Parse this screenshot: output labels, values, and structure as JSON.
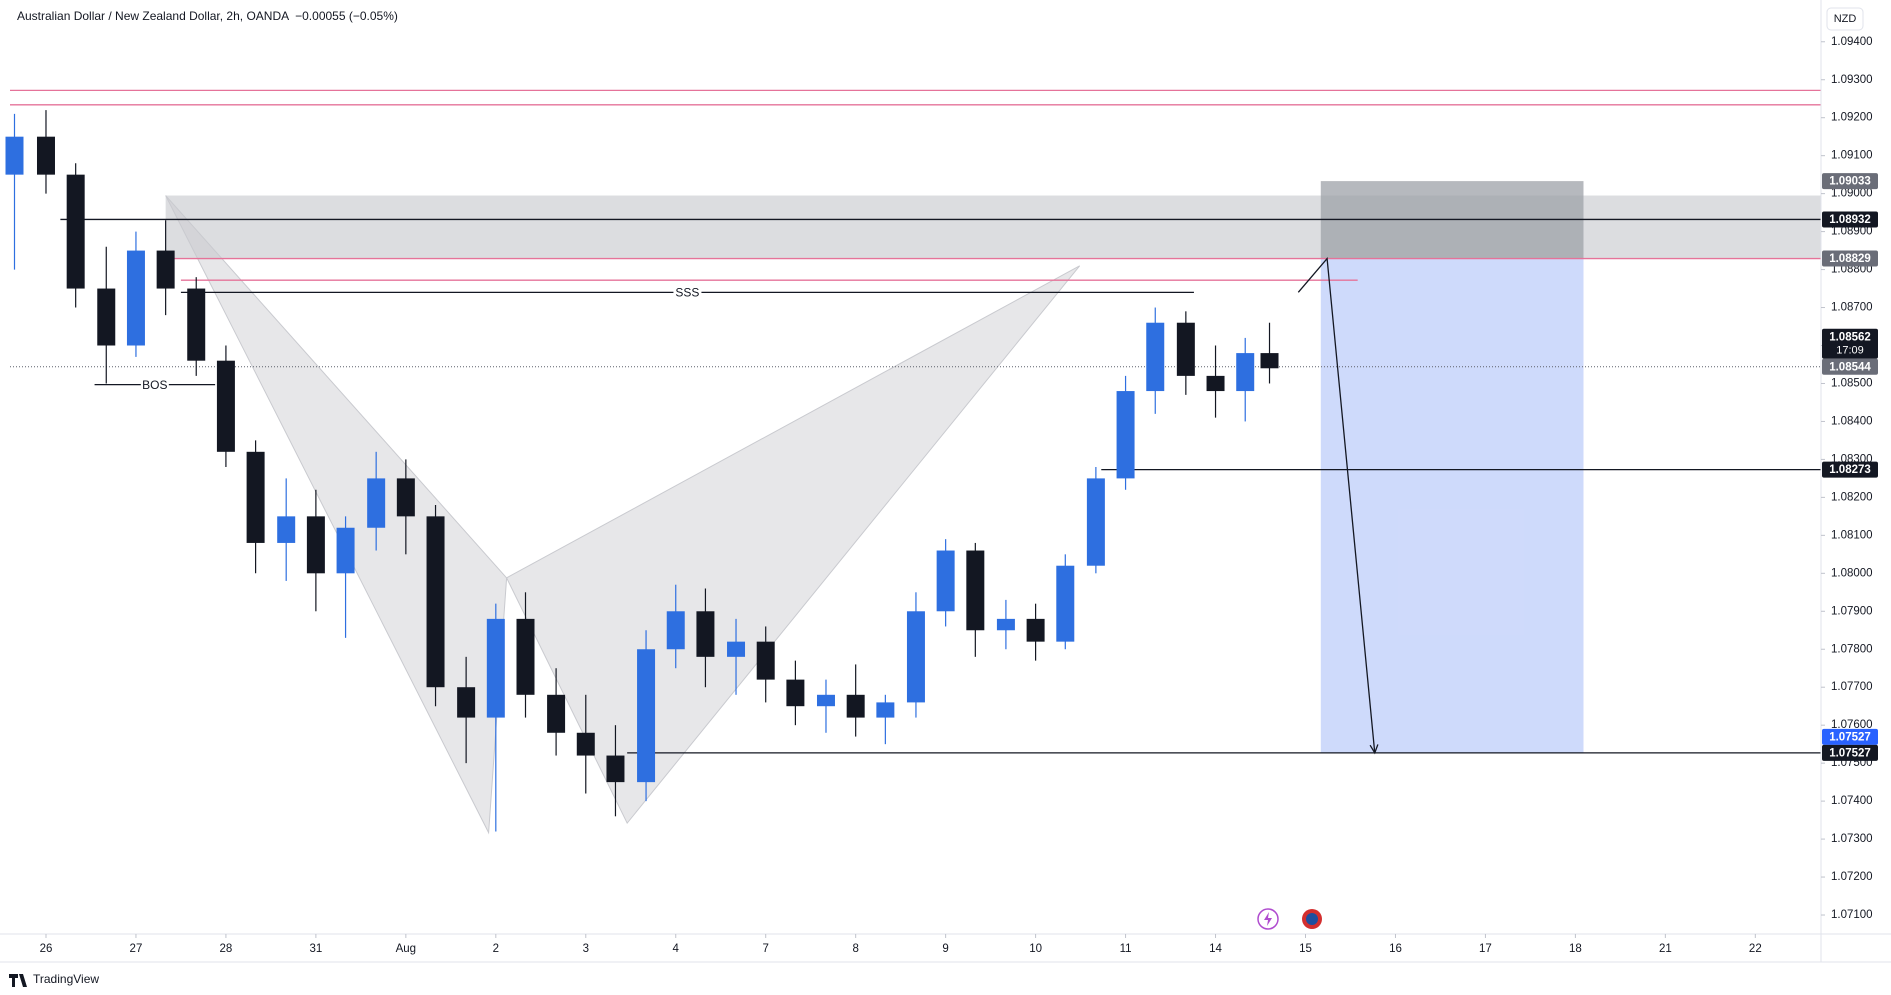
{
  "chart_data": {
    "type": "candlestick",
    "title": "Australian Dollar / New Zealand Dollar, 2h, OANDA",
    "change": "−0.00055 (−0.05%)",
    "currency": "NZD",
    "footer": "TradingView",
    "up_color": "#2e6fe0",
    "down_color": "#131722",
    "grid": false,
    "x": [
      -0.35,
      0,
      0.33,
      0.67,
      1,
      1.33,
      1.67,
      2,
      2.33,
      2.67,
      3,
      3.33,
      3.67,
      4,
      4.33,
      4.67,
      5,
      5.33,
      5.67,
      6,
      6.33,
      6.67,
      7,
      7.33,
      7.67,
      8,
      8.33,
      8.67,
      9,
      9.33,
      9.67,
      10,
      10.33,
      10.67,
      11,
      11.33,
      11.67,
      12,
      12.33,
      12.67,
      13,
      13.33,
      13.6
    ],
    "open": [
      1.0905,
      1.0915,
      1.0905,
      1.0875,
      1.086,
      1.0885,
      1.0875,
      1.0856,
      1.0832,
      1.0808,
      1.0815,
      1.08,
      1.0812,
      1.0825,
      1.0815,
      1.077,
      1.0762,
      1.0788,
      1.0768,
      1.0758,
      1.0752,
      1.0745,
      1.078,
      1.079,
      1.0778,
      1.0782,
      1.0772,
      1.0765,
      1.0768,
      1.0762,
      1.0766,
      1.079,
      1.0806,
      1.0785,
      1.0788,
      1.0782,
      1.0802,
      1.0825,
      1.0848,
      1.0866,
      1.0852,
      1.0848,
      1.0858
    ],
    "high": [
      1.0921,
      1.0922,
      1.0908,
      1.0886,
      1.089,
      1.0893,
      1.0878,
      1.086,
      1.0835,
      1.0825,
      1.0822,
      1.0815,
      1.0832,
      1.083,
      1.0818,
      1.0778,
      1.0792,
      1.0795,
      1.0775,
      1.0768,
      1.076,
      1.0785,
      1.0797,
      1.0796,
      1.0788,
      1.0786,
      1.0777,
      1.0772,
      1.0776,
      1.0768,
      1.0795,
      1.0809,
      1.0808,
      1.0793,
      1.0792,
      1.0805,
      1.0828,
      1.0852,
      1.087,
      1.0869,
      1.086,
      1.0862,
      1.0866
    ],
    "low": [
      1.088,
      1.09,
      1.087,
      1.085,
      1.0857,
      1.0868,
      1.0852,
      1.0828,
      1.08,
      1.0798,
      1.079,
      1.0783,
      1.0806,
      1.0805,
      1.0765,
      1.075,
      1.0732,
      1.0762,
      1.0752,
      1.0742,
      1.0736,
      1.074,
      1.0775,
      1.077,
      1.0768,
      1.0766,
      1.076,
      1.0758,
      1.0757,
      1.0755,
      1.0762,
      1.0786,
      1.0778,
      1.078,
      1.0777,
      1.078,
      1.08,
      1.0822,
      1.0842,
      1.0847,
      1.0841,
      1.084,
      1.085
    ],
    "close": [
      1.0915,
      1.0905,
      1.0875,
      1.086,
      1.0885,
      1.0875,
      1.0856,
      1.0832,
      1.0808,
      1.0815,
      1.08,
      1.0812,
      1.0825,
      1.0815,
      1.077,
      1.0762,
      1.0788,
      1.0768,
      1.0758,
      1.0752,
      1.0745,
      1.078,
      1.079,
      1.0778,
      1.0782,
      1.0772,
      1.0765,
      1.0768,
      1.0762,
      1.0766,
      1.079,
      1.0806,
      1.0785,
      1.0788,
      1.0782,
      1.0802,
      1.0825,
      1.0848,
      1.0866,
      1.0852,
      1.0848,
      1.0858,
      1.0854
    ],
    "xlim": [
      -0.4,
      19.73
    ],
    "ylim": [
      1.0705,
      1.0951
    ],
    "xticks": [
      {
        "value": 0,
        "label": "26"
      },
      {
        "value": 1,
        "label": "27"
      },
      {
        "value": 2,
        "label": "28"
      },
      {
        "value": 3,
        "label": "31"
      },
      {
        "value": 4,
        "label": "Aug"
      },
      {
        "value": 5,
        "label": "2"
      },
      {
        "value": 6,
        "label": "3"
      },
      {
        "value": 7,
        "label": "4"
      },
      {
        "value": 8,
        "label": "7"
      },
      {
        "value": 9,
        "label": "8"
      },
      {
        "value": 10,
        "label": "9"
      },
      {
        "value": 11,
        "label": "10"
      },
      {
        "value": 12,
        "label": "11"
      },
      {
        "value": 13,
        "label": "14"
      },
      {
        "value": 14,
        "label": "15"
      },
      {
        "value": 15,
        "label": "16"
      },
      {
        "value": 16,
        "label": "17"
      },
      {
        "value": 17,
        "label": "18"
      },
      {
        "value": 18,
        "label": "21"
      },
      {
        "value": 19,
        "label": "22"
      }
    ],
    "yticks": [
      {
        "value": 1.071,
        "label": "1.07100"
      },
      {
        "value": 1.072,
        "label": "1.07200"
      },
      {
        "value": 1.073,
        "label": "1.07300"
      },
      {
        "value": 1.074,
        "label": "1.07400"
      },
      {
        "value": 1.075,
        "label": "1.07500"
      },
      {
        "value": 1.076,
        "label": "1.07600"
      },
      {
        "value": 1.077,
        "label": "1.07700"
      },
      {
        "value": 1.078,
        "label": "1.07800"
      },
      {
        "value": 1.079,
        "label": "1.07900"
      },
      {
        "value": 1.08,
        "label": "1.08000"
      },
      {
        "value": 1.081,
        "label": "1.08100"
      },
      {
        "value": 1.082,
        "label": "1.08200"
      },
      {
        "value": 1.083,
        "label": "1.08300"
      },
      {
        "value": 1.084,
        "label": "1.08400"
      },
      {
        "value": 1.085,
        "label": "1.08500"
      },
      {
        "value": 1.086,
        "label": "1.08600"
      },
      {
        "value": 1.087,
        "label": "1.08700"
      },
      {
        "value": 1.088,
        "label": "1.08800"
      },
      {
        "value": 1.089,
        "label": "1.08900"
      },
      {
        "value": 1.09,
        "label": "1.09000"
      },
      {
        "value": 1.091,
        "label": "1.09100"
      },
      {
        "value": 1.092,
        "label": "1.09200"
      },
      {
        "value": 1.093,
        "label": "1.09300"
      },
      {
        "value": 1.094,
        "label": "1.09400"
      }
    ],
    "zone": {
      "x": [
        1.33,
        19.73
      ],
      "y": [
        1.08829,
        1.08995
      ],
      "color": "#d6d7db"
    },
    "pattern": {
      "x": [
        1.33,
        4.92,
        5.12,
        11.49,
        6.46,
        5.12
      ],
      "y": [
        1.08995,
        1.07317,
        1.07988,
        1.0881,
        1.07342,
        1.07988
      ],
      "color": "#c9cacf"
    },
    "levels": [
      {
        "price": 1.09272,
        "x": [
          -0.4,
          19.73
        ],
        "color": "#e57399"
      },
      {
        "price": 1.09234,
        "x": [
          -0.4,
          19.73
        ],
        "color": "#e57399"
      },
      {
        "price": 1.08932,
        "x": [
          0.16,
          19.73
        ],
        "color": "#131722"
      },
      {
        "price": 1.08829,
        "x": [
          1.33,
          19.73
        ],
        "color": "#e57399"
      },
      {
        "price": 1.08772,
        "x": [
          1.5,
          14.58
        ],
        "color": "#e57399"
      },
      {
        "price": 1.0874,
        "x": [
          1.5,
          12.76
        ],
        "color": "#131722",
        "label": "SSS"
      },
      {
        "price": 1.08497,
        "x": [
          0.54,
          1.88
        ],
        "color": "#131722",
        "label": "BOS"
      },
      {
        "price": 1.08273,
        "x": [
          11.73,
          19.73
        ],
        "color": "#131722"
      },
      {
        "price": 1.07527,
        "x": [
          6.46,
          19.73
        ],
        "color": "#131722"
      }
    ],
    "position": {
      "x": [
        14.17,
        17.09
      ],
      "entry": 1.08829,
      "stop": 1.09033,
      "target": 1.07527,
      "stop_color": "#9ea1a8",
      "target_color": "#c6d4fa"
    },
    "arrow": {
      "x": [
        13.92,
        14.24,
        14.77
      ],
      "y": [
        1.0874,
        1.08829,
        1.07527
      ]
    },
    "price_labels": [
      {
        "value": 1.09033,
        "label": "1.09033",
        "color": "#6a6d78"
      },
      {
        "value": 1.08932,
        "label": "1.08932",
        "color": "#131722"
      },
      {
        "value": 1.08829,
        "label": "1.08829",
        "color": "#6a6d78"
      },
      {
        "value": 1.08562,
        "label": "1.08562",
        "sub": "17:09",
        "color": "#131722"
      },
      {
        "value": 1.08544,
        "label": "1.08544",
        "color": "#6a6d78",
        "line": "dotted"
      },
      {
        "value": 1.08273,
        "label": "1.08273",
        "color": "#131722"
      },
      {
        "value": 1.07527,
        "label": "1.07527",
        "color": "#2962ff"
      },
      {
        "value": 1.07527,
        "label": "1.07527",
        "color": "#131722"
      }
    ]
  }
}
